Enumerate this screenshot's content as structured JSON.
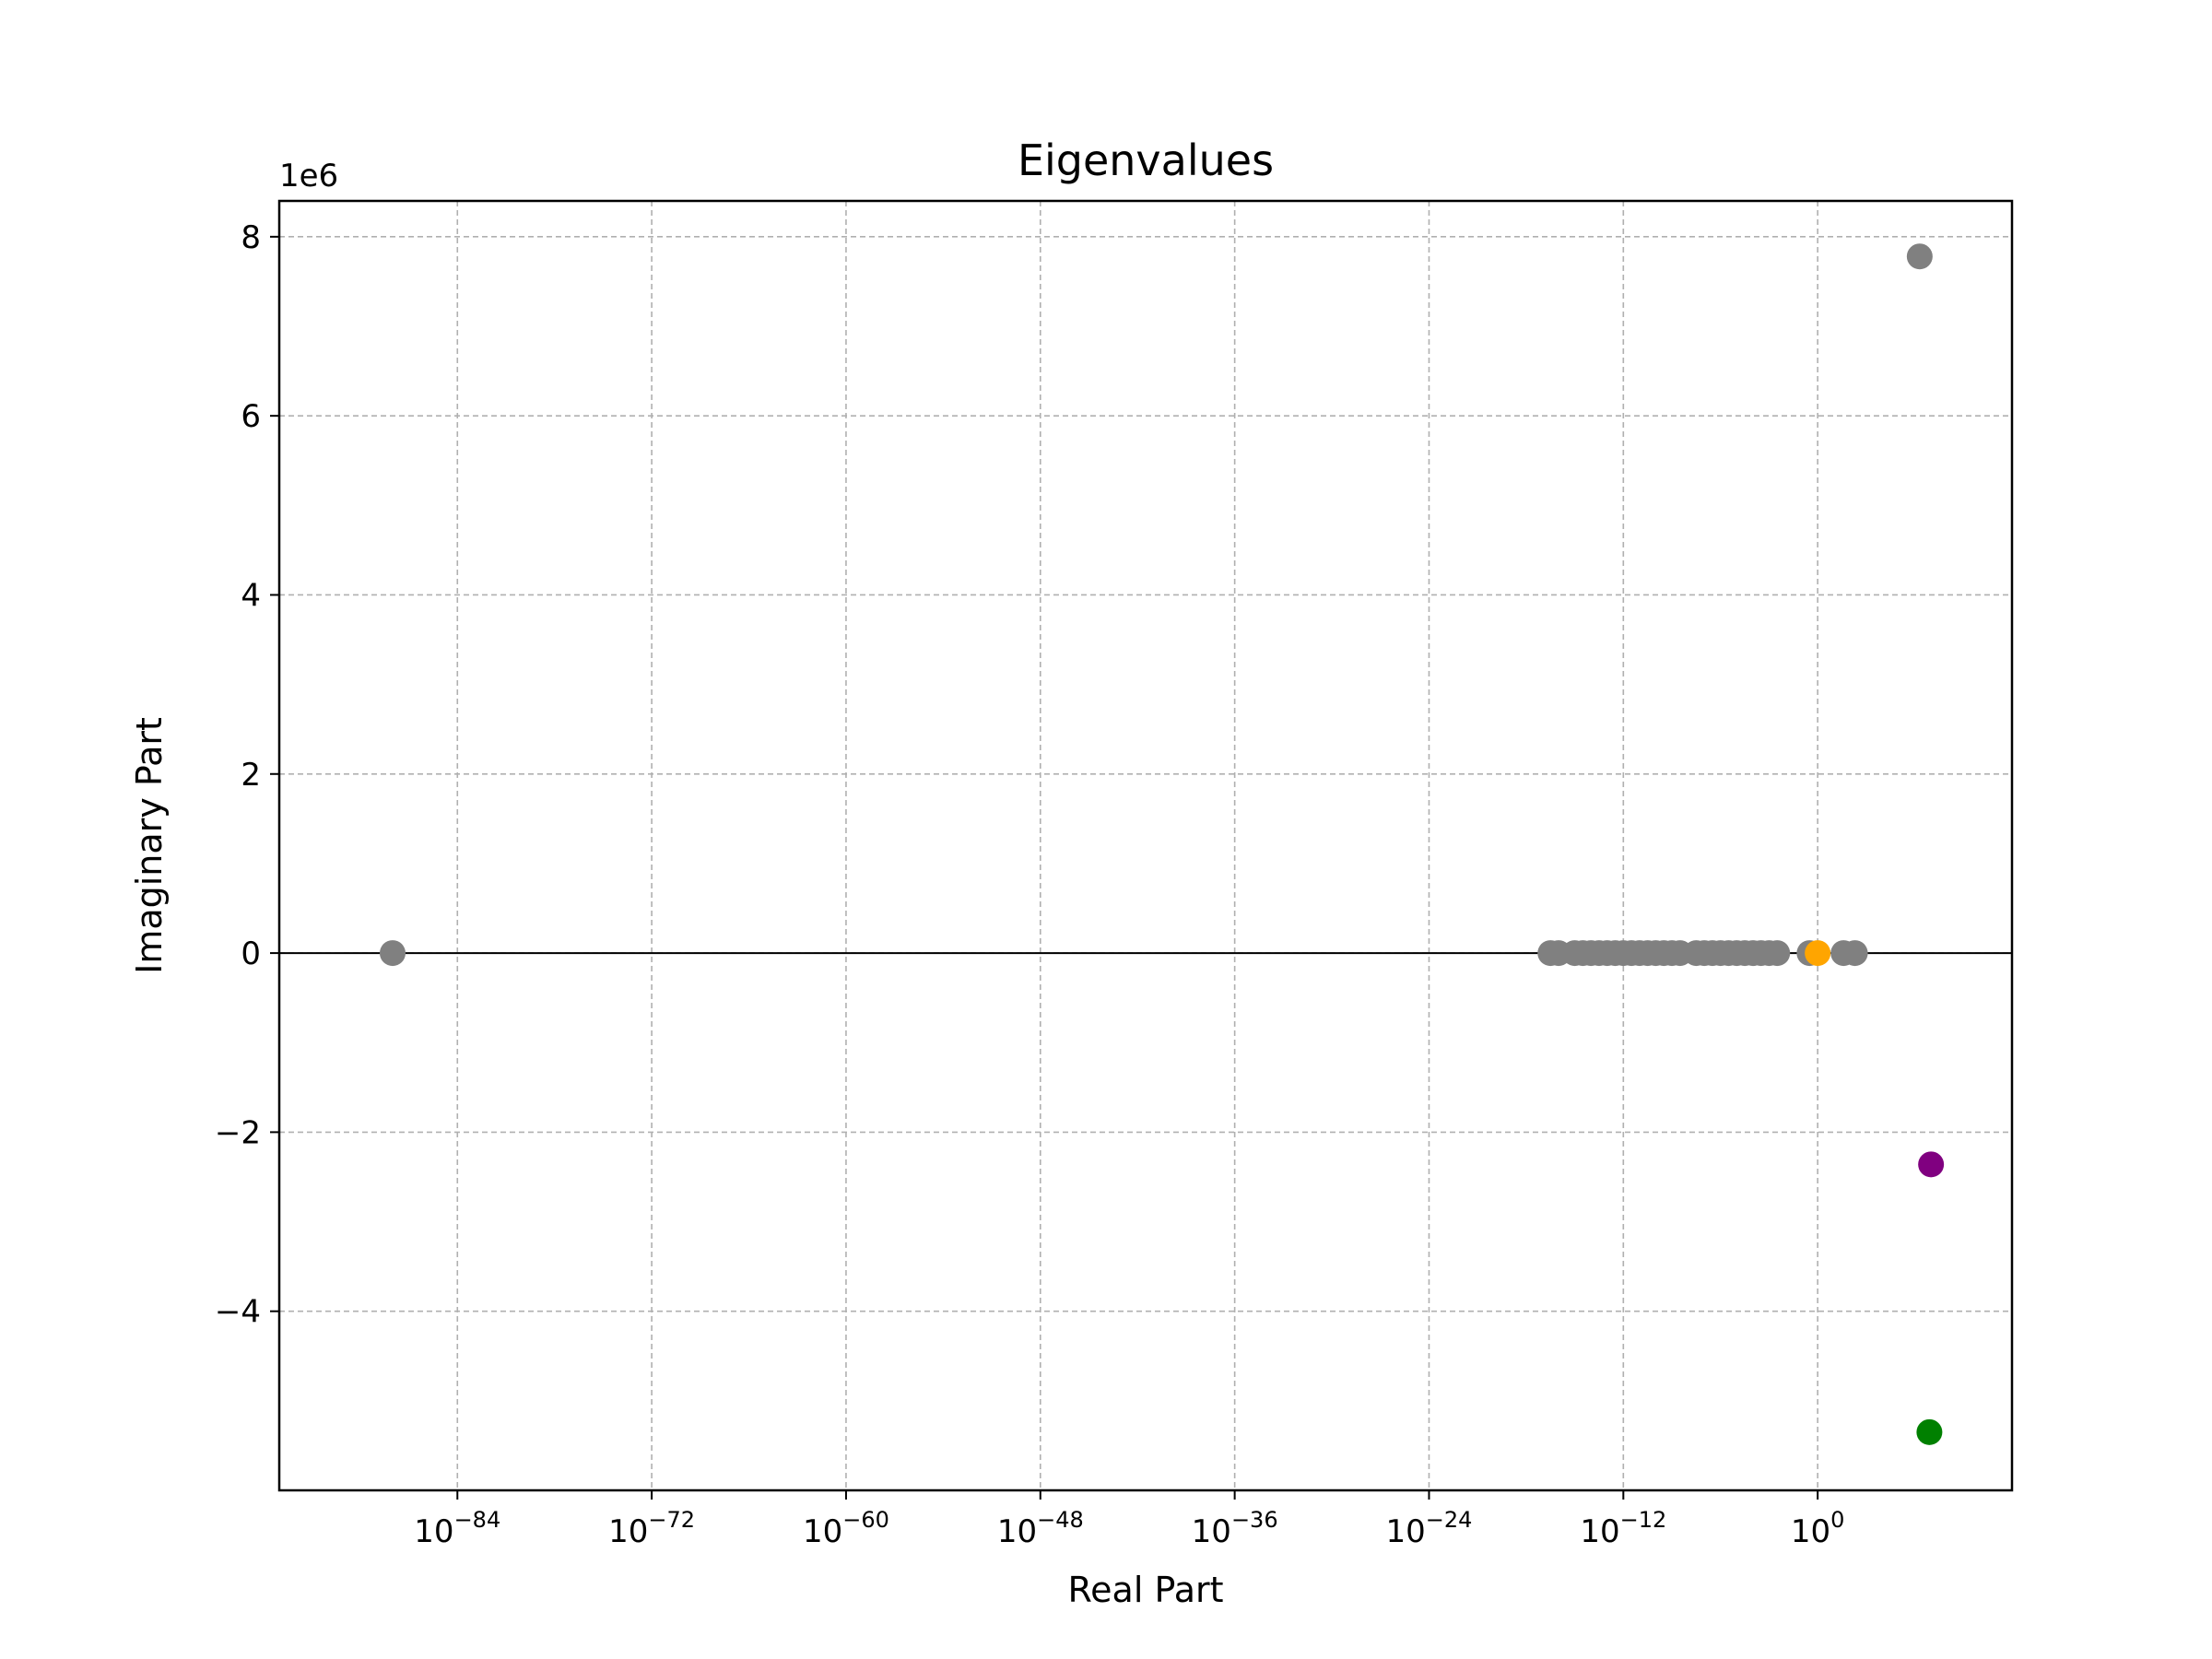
{
  "chart_data": {
    "type": "scatter",
    "title": "Eigenvalues",
    "xlabel": "Real Part",
    "ylabel": "Imaginary Part",
    "xscale": "log",
    "xlim_log10": [
      -95,
      12
    ],
    "ylim": [
      -6000000,
      8400000
    ],
    "y_offset_label": "1e6",
    "grid": true,
    "zero_line": true,
    "x_ticks": [
      {
        "base": "10",
        "exp": "−84",
        "log10": -84
      },
      {
        "base": "10",
        "exp": "−72",
        "log10": -72
      },
      {
        "base": "10",
        "exp": "−60",
        "log10": -60
      },
      {
        "base": "10",
        "exp": "−48",
        "log10": -48
      },
      {
        "base": "10",
        "exp": "−36",
        "log10": -36
      },
      {
        "base": "10",
        "exp": "−24",
        "log10": -24
      },
      {
        "base": "10",
        "exp": "−12",
        "log10": -12
      },
      {
        "base": "10",
        "exp": "0",
        "log10": 0
      }
    ],
    "y_ticks": [
      {
        "label": "−4",
        "value": -4000000
      },
      {
        "label": "−2",
        "value": -2000000
      },
      {
        "label": "0",
        "value": 0
      },
      {
        "label": "2",
        "value": 2000000
      },
      {
        "label": "4",
        "value": 4000000
      },
      {
        "label": "6",
        "value": 6000000
      },
      {
        "label": "8",
        "value": 8000000
      }
    ],
    "colors": {
      "gray": "#808080",
      "orange": "#ffa500",
      "purple": "#800080",
      "green": "#008000",
      "grid": "#b0b0b0"
    },
    "points": [
      {
        "log10x": -88,
        "y": 0,
        "color": "gray"
      },
      {
        "log10x": -16.5,
        "y": 0,
        "color": "gray"
      },
      {
        "log10x": -16,
        "y": 0,
        "color": "gray"
      },
      {
        "log10x": -15,
        "y": 0,
        "color": "gray"
      },
      {
        "log10x": -14.5,
        "y": 0,
        "color": "gray"
      },
      {
        "log10x": -14,
        "y": 0,
        "color": "gray"
      },
      {
        "log10x": -13.5,
        "y": 0,
        "color": "gray"
      },
      {
        "log10x": -13,
        "y": 0,
        "color": "gray"
      },
      {
        "log10x": -12.5,
        "y": 0,
        "color": "gray"
      },
      {
        "log10x": -12,
        "y": 0,
        "color": "gray"
      },
      {
        "log10x": -11.5,
        "y": 0,
        "color": "gray"
      },
      {
        "log10x": -11,
        "y": 0,
        "color": "gray"
      },
      {
        "log10x": -10.5,
        "y": 0,
        "color": "gray"
      },
      {
        "log10x": -10,
        "y": 0,
        "color": "gray"
      },
      {
        "log10x": -9.5,
        "y": 0,
        "color": "gray"
      },
      {
        "log10x": -9,
        "y": 0,
        "color": "gray"
      },
      {
        "log10x": -8.5,
        "y": 0,
        "color": "gray"
      },
      {
        "log10x": -7.5,
        "y": 0,
        "color": "gray"
      },
      {
        "log10x": -7,
        "y": 0,
        "color": "gray"
      },
      {
        "log10x": -6.5,
        "y": 0,
        "color": "gray"
      },
      {
        "log10x": -6,
        "y": 0,
        "color": "gray"
      },
      {
        "log10x": -5.5,
        "y": 0,
        "color": "gray"
      },
      {
        "log10x": -5,
        "y": 0,
        "color": "gray"
      },
      {
        "log10x": -4.5,
        "y": 0,
        "color": "gray"
      },
      {
        "log10x": -4,
        "y": 0,
        "color": "gray"
      },
      {
        "log10x": -3.5,
        "y": 0,
        "color": "gray"
      },
      {
        "log10x": -3,
        "y": 0,
        "color": "gray"
      },
      {
        "log10x": -2.5,
        "y": 0,
        "color": "gray"
      },
      {
        "log10x": -0.5,
        "y": 0,
        "color": "gray"
      },
      {
        "log10x": 1.6,
        "y": 0,
        "color": "gray"
      },
      {
        "log10x": 2.3,
        "y": 0,
        "color": "gray"
      },
      {
        "log10x": 0,
        "y": 0,
        "color": "orange"
      },
      {
        "log10x": 6.3,
        "y": 7780000,
        "color": "gray"
      },
      {
        "log10x": 7.0,
        "y": -2360000,
        "color": "purple"
      },
      {
        "log10x": 6.9,
        "y": -5350000,
        "color": "green"
      }
    ]
  }
}
